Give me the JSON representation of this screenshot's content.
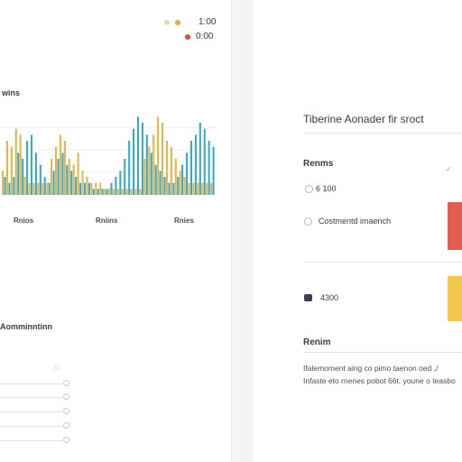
{
  "left_panel": {
    "legend": [
      {
        "label": "1:00",
        "color": "#e5a93c"
      },
      {
        "label": "0:00",
        "color": "#e24a3c"
      }
    ],
    "section_title": "wins",
    "axis_labels": [
      "Rnios",
      "Rniins",
      "Rnies"
    ],
    "subsection_title": "Aomminntinn",
    "slider_count": 5
  },
  "right_panel": {
    "title": "Tiberine Aonader fir sroct",
    "group1_label": "Renms",
    "option1_text": "6 100",
    "option2_text": "Costmentd imaench",
    "option3_text": "4300",
    "group2_label": "Renim",
    "paragraph": "Ifalemoment aing co pimo taenon oed ,/ Infaste eto rnenes pobot 66t. youne o teasbo",
    "accent_red": "#e45c4f",
    "accent_yellow": "#f1c84c",
    "hint_icon_color": "#8bc34a"
  },
  "chart_data": {
    "type": "bar",
    "series": [
      {
        "color": "#e8b347",
        "values": [
          4,
          9,
          8,
          11,
          10,
          3,
          2,
          2,
          2,
          2,
          2,
          6,
          8,
          10,
          9,
          6,
          5,
          7,
          4,
          3,
          2,
          2,
          2,
          1,
          1,
          1,
          1,
          1,
          1,
          1,
          1,
          1,
          6,
          8,
          10,
          13,
          12,
          9,
          8,
          6,
          4,
          3,
          2,
          2,
          2,
          2,
          2,
          2
        ]
      },
      {
        "color": "#35aac8",
        "values": [
          3,
          2,
          3,
          7,
          6,
          9,
          10,
          7,
          5,
          3,
          2,
          4,
          6,
          7,
          5,
          4,
          3,
          2,
          2,
          2,
          1,
          1,
          1,
          1,
          2,
          3,
          4,
          6,
          9,
          11,
          13,
          12,
          10,
          7,
          5,
          4,
          3,
          2,
          2,
          3,
          5,
          7,
          9,
          10,
          12,
          11,
          9,
          8
        ]
      }
    ],
    "ylim": [
      0,
      15
    ]
  }
}
